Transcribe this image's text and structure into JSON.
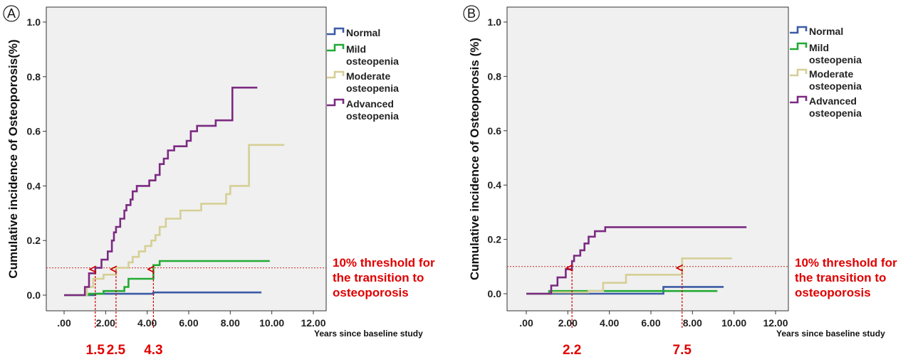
{
  "chart_data": [
    {
      "type": "line",
      "panel_label": "A",
      "ylabel": "Cumulative incidence of Osteoporosis(%)",
      "xlabel": "Years since baseline study",
      "xlim": [
        0,
        12
      ],
      "ylim": [
        0,
        1
      ],
      "x_tick_labels": [
        ".00",
        "2.00",
        "4.00",
        "6.00",
        "8.00",
        "10.00",
        "12.00"
      ],
      "y_tick_labels": [
        "0.0",
        "0.2",
        "0.4",
        "0.6",
        "0.8",
        "1.0"
      ],
      "grid": false,
      "legend_position": "right",
      "threshold": {
        "y": 0.1,
        "label_lines": [
          "10% threshold for",
          "the transition to",
          "osteoporosis"
        ]
      },
      "annotations": [
        {
          "x": 1.5,
          "text": "1.5"
        },
        {
          "x": 2.5,
          "text": "2.5"
        },
        {
          "x": 4.3,
          "text": "4.3"
        }
      ],
      "series": [
        {
          "name_lines": [
            "Normal"
          ],
          "color": "#3b5ba5",
          "points": [
            [
              0,
              0
            ],
            [
              1.5,
              0
            ],
            [
              1.5,
              0.005
            ],
            [
              4.3,
              0.005
            ],
            [
              4.3,
              0.01
            ],
            [
              9.5,
              0.01
            ]
          ]
        },
        {
          "name_lines": [
            "Mild",
            "osteopenia"
          ],
          "color": "#22aa33",
          "points": [
            [
              0,
              0
            ],
            [
              1.2,
              0
            ],
            [
              1.2,
              0.005
            ],
            [
              1.9,
              0.005
            ],
            [
              1.9,
              0.015
            ],
            [
              2.9,
              0.015
            ],
            [
              2.9,
              0.03
            ],
            [
              3.1,
              0.03
            ],
            [
              3.1,
              0.06
            ],
            [
              4.3,
              0.06
            ],
            [
              4.3,
              0.11
            ],
            [
              4.6,
              0.11
            ],
            [
              4.6,
              0.125
            ],
            [
              9.9,
              0.125
            ]
          ]
        },
        {
          "name_lines": [
            "Moderate",
            "osteopenia"
          ],
          "color": "#d6cf95",
          "points": [
            [
              0,
              0
            ],
            [
              1.1,
              0
            ],
            [
              1.1,
              0.03
            ],
            [
              1.4,
              0.03
            ],
            [
              1.4,
              0.06
            ],
            [
              1.9,
              0.06
            ],
            [
              1.9,
              0.075
            ],
            [
              2.5,
              0.075
            ],
            [
              2.5,
              0.1
            ],
            [
              3.1,
              0.1
            ],
            [
              3.1,
              0.12
            ],
            [
              3.3,
              0.12
            ],
            [
              3.3,
              0.14
            ],
            [
              3.6,
              0.14
            ],
            [
              3.6,
              0.16
            ],
            [
              3.9,
              0.16
            ],
            [
              3.9,
              0.18
            ],
            [
              4.2,
              0.18
            ],
            [
              4.2,
              0.2
            ],
            [
              4.4,
              0.2
            ],
            [
              4.4,
              0.22
            ],
            [
              4.6,
              0.22
            ],
            [
              4.6,
              0.25
            ],
            [
              4.9,
              0.25
            ],
            [
              4.9,
              0.28
            ],
            [
              5.6,
              0.28
            ],
            [
              5.6,
              0.31
            ],
            [
              6.6,
              0.31
            ],
            [
              6.6,
              0.335
            ],
            [
              7.8,
              0.335
            ],
            [
              7.8,
              0.37
            ],
            [
              8.0,
              0.37
            ],
            [
              8.0,
              0.4
            ],
            [
              8.9,
              0.4
            ],
            [
              8.9,
              0.55
            ],
            [
              10.6,
              0.55
            ]
          ]
        },
        {
          "name_lines": [
            "Advanced",
            "osteopenia"
          ],
          "color": "#7b2a82",
          "points": [
            [
              0,
              0
            ],
            [
              1.0,
              0
            ],
            [
              1.0,
              0.03
            ],
            [
              1.2,
              0.03
            ],
            [
              1.2,
              0.08
            ],
            [
              1.5,
              0.08
            ],
            [
              1.5,
              0.1
            ],
            [
              1.8,
              0.1
            ],
            [
              1.8,
              0.13
            ],
            [
              2.1,
              0.13
            ],
            [
              2.1,
              0.16
            ],
            [
              2.3,
              0.16
            ],
            [
              2.3,
              0.2
            ],
            [
              2.4,
              0.2
            ],
            [
              2.4,
              0.23
            ],
            [
              2.5,
              0.23
            ],
            [
              2.5,
              0.25
            ],
            [
              2.7,
              0.25
            ],
            [
              2.7,
              0.28
            ],
            [
              2.9,
              0.28
            ],
            [
              2.9,
              0.31
            ],
            [
              3.0,
              0.31
            ],
            [
              3.0,
              0.33
            ],
            [
              3.2,
              0.33
            ],
            [
              3.2,
              0.35
            ],
            [
              3.3,
              0.35
            ],
            [
              3.3,
              0.38
            ],
            [
              3.5,
              0.38
            ],
            [
              3.5,
              0.4
            ],
            [
              4.1,
              0.4
            ],
            [
              4.1,
              0.42
            ],
            [
              4.4,
              0.42
            ],
            [
              4.4,
              0.44
            ],
            [
              4.6,
              0.44
            ],
            [
              4.6,
              0.48
            ],
            [
              4.8,
              0.48
            ],
            [
              4.8,
              0.5
            ],
            [
              5.0,
              0.5
            ],
            [
              5.0,
              0.53
            ],
            [
              5.3,
              0.53
            ],
            [
              5.3,
              0.545
            ],
            [
              5.9,
              0.545
            ],
            [
              5.9,
              0.565
            ],
            [
              6.1,
              0.565
            ],
            [
              6.1,
              0.6
            ],
            [
              6.4,
              0.6
            ],
            [
              6.4,
              0.62
            ],
            [
              7.3,
              0.62
            ],
            [
              7.3,
              0.64
            ],
            [
              8.1,
              0.64
            ],
            [
              8.1,
              0.76
            ],
            [
              9.3,
              0.76
            ]
          ]
        }
      ]
    },
    {
      "type": "line",
      "panel_label": "B",
      "ylabel": "Cumulative incidence of Osteoporosis (%)",
      "xlabel": "Years since baseline study",
      "xlim": [
        0,
        12
      ],
      "ylim": [
        0,
        1
      ],
      "x_tick_labels": [
        ".00",
        "2.00",
        "4.00",
        "6.00",
        "8.00",
        "10.00",
        "12.00"
      ],
      "y_tick_labels": [
        "0.0",
        "0.2",
        "0.4",
        "0.6",
        "0.8",
        "1.0"
      ],
      "grid": false,
      "legend_position": "right",
      "threshold": {
        "y": 0.1,
        "label_lines": [
          "10% threshold for",
          "the transition to",
          "osteoporosis"
        ]
      },
      "annotations": [
        {
          "x": 2.2,
          "text": "2.2"
        },
        {
          "x": 7.5,
          "text": "7.5"
        }
      ],
      "series": [
        {
          "name_lines": [
            "Normal"
          ],
          "color": "#3b5ba5",
          "points": [
            [
              0,
              0
            ],
            [
              2.8,
              0
            ],
            [
              6.6,
              0
            ],
            [
              6.6,
              0.025
            ],
            [
              9.5,
              0.025
            ]
          ]
        },
        {
          "name_lines": [
            "Mild",
            "osteopenia"
          ],
          "color": "#22aa33",
          "points": [
            [
              0,
              0
            ],
            [
              1.1,
              0
            ],
            [
              1.1,
              0.01
            ],
            [
              9.2,
              0.01
            ]
          ]
        },
        {
          "name_lines": [
            "Moderate",
            "osteopenia"
          ],
          "color": "#d6cf95",
          "points": [
            [
              0,
              0
            ],
            [
              1.2,
              0
            ],
            [
              1.2,
              0.005
            ],
            [
              3.0,
              0.005
            ],
            [
              3.0,
              0.01
            ],
            [
              3.7,
              0.01
            ],
            [
              3.7,
              0.04
            ],
            [
              4.8,
              0.04
            ],
            [
              4.8,
              0.07
            ],
            [
              7.5,
              0.07
            ],
            [
              7.5,
              0.13
            ],
            [
              9.9,
              0.13
            ]
          ]
        },
        {
          "name_lines": [
            "Advanced",
            "osteopenia"
          ],
          "color": "#7b2a82",
          "points": [
            [
              0,
              0
            ],
            [
              1.2,
              0
            ],
            [
              1.2,
              0.03
            ],
            [
              1.5,
              0.03
            ],
            [
              1.5,
              0.06
            ],
            [
              1.9,
              0.06
            ],
            [
              1.9,
              0.09
            ],
            [
              2.2,
              0.09
            ],
            [
              2.2,
              0.12
            ],
            [
              2.3,
              0.12
            ],
            [
              2.3,
              0.14
            ],
            [
              2.6,
              0.14
            ],
            [
              2.6,
              0.16
            ],
            [
              2.8,
              0.16
            ],
            [
              2.8,
              0.185
            ],
            [
              3.0,
              0.185
            ],
            [
              3.0,
              0.21
            ],
            [
              3.3,
              0.21
            ],
            [
              3.3,
              0.23
            ],
            [
              3.8,
              0.23
            ],
            [
              3.8,
              0.245
            ],
            [
              10.6,
              0.245
            ]
          ]
        }
      ]
    }
  ]
}
